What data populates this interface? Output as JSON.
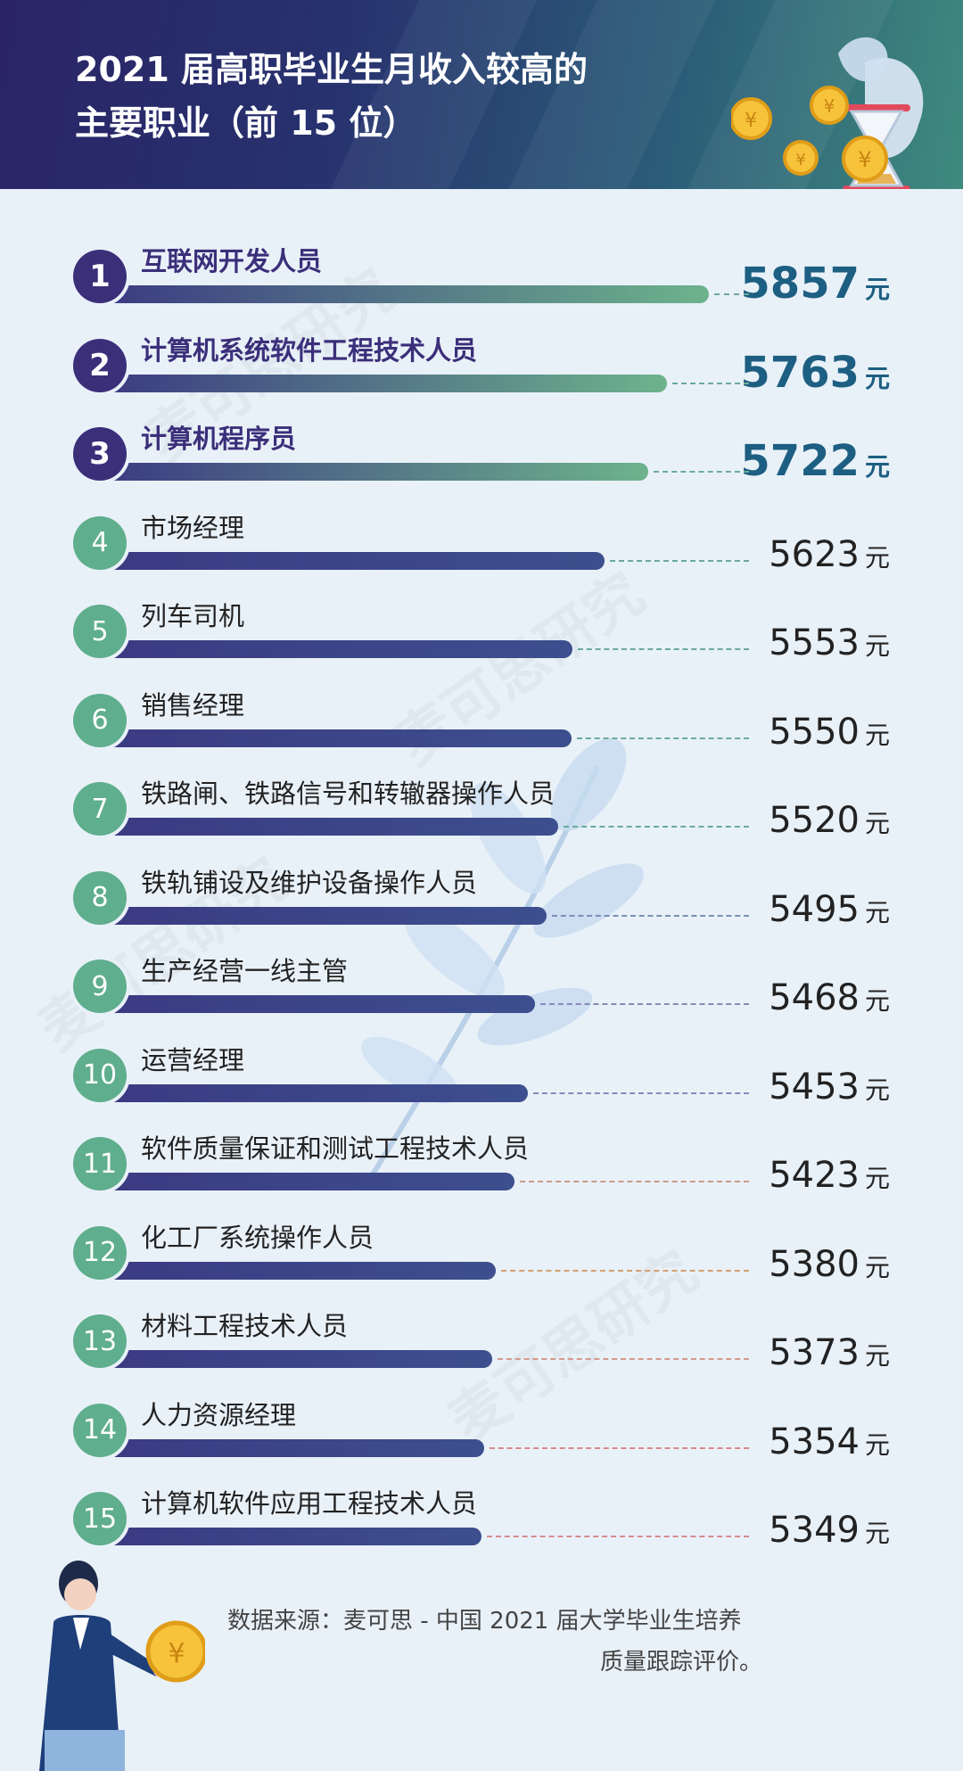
{
  "title": {
    "line1": "2021 届高职毕业生月收入较高的",
    "line2": "主要职业（前 15 位）"
  },
  "watermark_text": "麦可思研究",
  "chart_data": {
    "type": "bar",
    "orientation": "horizontal",
    "unit": "元",
    "categories": [
      "互联网开发人员",
      "计算机系统软件工程技术人员",
      "计算机程序员",
      "市场经理",
      "列车司机",
      "销售经理",
      "铁路闸、铁路信号和转辙器操作人员",
      "铁轨铺设及维护设备操作人员",
      "生产经营一线主管",
      "运营经理",
      "软件质量保证和测试工程技术人员",
      "化工厂系统操作人员",
      "材料工程技术人员",
      "人力资源经理",
      "计算机软件应用工程技术人员"
    ],
    "ranks": [
      "1",
      "2",
      "3",
      "4",
      "5",
      "6",
      "7",
      "8",
      "9",
      "10",
      "11",
      "12",
      "13",
      "14",
      "15"
    ],
    "values": [
      5857,
      5763,
      5722,
      5623,
      5553,
      5550,
      5520,
      5495,
      5468,
      5453,
      5423,
      5380,
      5373,
      5354,
      5349
    ],
    "value_labels": [
      "5857",
      "5763",
      "5722",
      "5623",
      "5553",
      "5550",
      "5520",
      "5495",
      "5468",
      "5453",
      "5423",
      "5380",
      "5373",
      "5354",
      "5349"
    ],
    "highlight_top": 3,
    "colors": {
      "bar_start": "#3b3a82",
      "bar_end_top": "#6db38c",
      "bar_end_rest": "#3d4f8e",
      "badge_top": "#3b2f7a",
      "badge_rest": "#5fae8d",
      "value_top": "#1d5f82",
      "dash_colors": [
        "#6aaa9a",
        "#6aaa9a",
        "#6aaa9a",
        "#6aaa9a",
        "#6aaa9a",
        "#6aaa9a",
        "#6aaa9a",
        "#7a8fb5",
        "#8a89b8",
        "#8a89b8",
        "#c89a8a",
        "#d2a070",
        "#d29a8a",
        "#d58a8a",
        "#d58a8a"
      ]
    }
  },
  "source": {
    "line1": "数据来源：麦可思 - 中国 2021 届大学毕业生培养",
    "line2": "质量跟踪评价。"
  }
}
